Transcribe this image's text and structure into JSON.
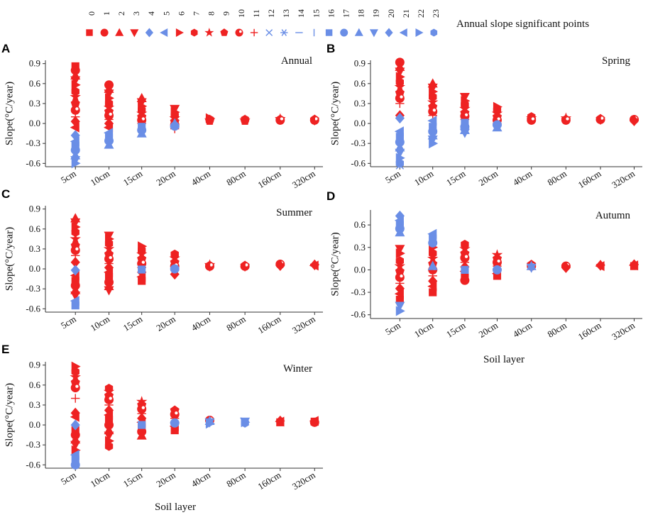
{
  "colors": {
    "red": "#ee2222",
    "blue": "#6a8ee6",
    "axis": "#333333"
  },
  "legend": {
    "title": "Annual slope significant points",
    "numbers": [
      "0",
      "1",
      "2",
      "3",
      "4",
      "5",
      "6",
      "7",
      "8",
      "9",
      "10",
      "11",
      "12",
      "13",
      "14",
      "15",
      "16",
      "17",
      "18",
      "19",
      "20",
      "21",
      "22",
      "23"
    ],
    "symbols": [
      {
        "shape": "square",
        "color": "red"
      },
      {
        "shape": "circle",
        "color": "red"
      },
      {
        "shape": "triangle-up",
        "color": "red"
      },
      {
        "shape": "triangle-down",
        "color": "red"
      },
      {
        "shape": "diamond",
        "color": "blue"
      },
      {
        "shape": "triangle-left",
        "color": "blue"
      },
      {
        "shape": "triangle-right",
        "color": "red"
      },
      {
        "shape": "hexagon",
        "color": "red"
      },
      {
        "shape": "star",
        "color": "red"
      },
      {
        "shape": "pentagon",
        "color": "red"
      },
      {
        "shape": "dotted-circle",
        "color": "red"
      },
      {
        "shape": "plus",
        "color": "red"
      },
      {
        "shape": "cross",
        "color": "blue"
      },
      {
        "shape": "asterisk",
        "color": "blue"
      },
      {
        "shape": "hline",
        "color": "blue"
      },
      {
        "shape": "vline",
        "color": "blue"
      },
      {
        "shape": "square",
        "color": "blue"
      },
      {
        "shape": "circle",
        "color": "blue"
      },
      {
        "shape": "triangle-up",
        "color": "blue"
      },
      {
        "shape": "triangle-down",
        "color": "blue"
      },
      {
        "shape": "diamond",
        "color": "blue"
      },
      {
        "shape": "triangle-left",
        "color": "blue"
      },
      {
        "shape": "triangle-right",
        "color": "blue"
      },
      {
        "shape": "hexagon",
        "color": "blue"
      }
    ]
  },
  "chart_data": [
    {
      "panel": "A",
      "type": "scatter",
      "title": "Annual",
      "ylabel": "Slope(°C/year)",
      "xlabel": "",
      "categories": [
        "5cm",
        "10cm",
        "15cm",
        "20cm",
        "40cm",
        "80cm",
        "160cm",
        "320cm"
      ],
      "ylim": [
        -0.65,
        0.95
      ],
      "yticks": [
        "0.9",
        "0.6",
        "0.3",
        "0.0",
        "-0.3",
        "-0.6"
      ],
      "groups": [
        {
          "category": "5cm",
          "red": [
            0.86,
            0.8,
            0.72,
            0.65,
            0.58,
            0.48,
            0.4,
            0.3,
            0.2,
            0.1,
            0.03,
            -0.06
          ],
          "blue": [
            -0.18,
            -0.27,
            -0.33,
            -0.4,
            -0.48,
            -0.55,
            -0.6
          ]
        },
        {
          "category": "10cm",
          "red": [
            0.58,
            0.52,
            0.45,
            0.38,
            0.3,
            0.24,
            0.18,
            0.12,
            0.06,
            0.0,
            -0.06
          ],
          "blue": [
            -0.14,
            -0.21,
            -0.26,
            -0.32
          ]
        },
        {
          "category": "15cm",
          "red": [
            0.38,
            0.32,
            0.26,
            0.2,
            0.15,
            0.1,
            0.05,
            0.0
          ],
          "blue": [
            -0.05,
            -0.1,
            -0.15
          ]
        },
        {
          "category": "20cm",
          "red": [
            0.22,
            0.17,
            0.12,
            0.08,
            0.03,
            -0.02,
            -0.08
          ],
          "blue": [
            -0.04,
            0.0
          ]
        },
        {
          "category": "40cm",
          "red": [
            0.08,
            0.06,
            0.05,
            0.04
          ],
          "blue": []
        },
        {
          "category": "80cm",
          "red": [
            0.06,
            0.05,
            0.04
          ],
          "blue": []
        },
        {
          "category": "160cm",
          "red": [
            0.07,
            0.06,
            0.05
          ],
          "blue": []
        },
        {
          "category": "320cm",
          "red": [
            0.06,
            0.05,
            0.04
          ],
          "blue": []
        }
      ]
    },
    {
      "panel": "B",
      "type": "scatter",
      "title": "Spring",
      "ylabel": "Slope(°C/year)",
      "xlabel": "",
      "categories": [
        "5cm",
        "10cm",
        "15cm",
        "20cm",
        "40cm",
        "80cm",
        "160cm",
        "320cm"
      ],
      "ylim": [
        -0.65,
        0.95
      ],
      "yticks": [
        "0.9",
        "0.6",
        "0.3",
        "0.0",
        "-0.3",
        "-0.6"
      ],
      "groups": [
        {
          "category": "5cm",
          "red": [
            0.92,
            0.85,
            0.78,
            0.7,
            0.62,
            0.55,
            0.46,
            0.38,
            0.3,
            0.12
          ],
          "blue": [
            0.08,
            -0.12,
            -0.2,
            -0.28,
            -0.36,
            -0.44,
            -0.52,
            -0.6,
            -0.63
          ]
        },
        {
          "category": "10cm",
          "red": [
            0.6,
            0.54,
            0.48,
            0.4,
            0.32,
            0.25,
            0.18,
            0.12
          ],
          "blue": [
            0.04,
            -0.05,
            -0.12,
            -0.18,
            -0.24,
            -0.3
          ]
        },
        {
          "category": "15cm",
          "red": [
            0.4,
            0.34,
            0.28,
            0.22,
            0.16,
            0.11,
            0.06
          ],
          "blue": [
            0.01,
            -0.05,
            -0.1,
            -0.14
          ]
        },
        {
          "category": "20cm",
          "red": [
            0.25,
            0.2,
            0.15,
            0.1,
            0.05,
            0.0
          ],
          "blue": [
            -0.02,
            -0.06
          ]
        },
        {
          "category": "40cm",
          "red": [
            0.1,
            0.08,
            0.06,
            0.05
          ],
          "blue": []
        },
        {
          "category": "80cm",
          "red": [
            0.08,
            0.06,
            0.05
          ],
          "blue": []
        },
        {
          "category": "160cm",
          "red": [
            0.07,
            0.06,
            0.05
          ],
          "blue": []
        },
        {
          "category": "320cm",
          "red": [
            0.06,
            0.05,
            0.04
          ],
          "blue": []
        }
      ]
    },
    {
      "panel": "C",
      "type": "scatter",
      "title": "Summer",
      "ylabel": "Slope(°C/year)",
      "xlabel": "",
      "categories": [
        "5cm",
        "10cm",
        "15cm",
        "20cm",
        "40cm",
        "80cm",
        "160cm",
        "320cm"
      ],
      "ylim": [
        -0.65,
        0.95
      ],
      "yticks": [
        "0.9",
        "0.6",
        "0.3",
        "0.0",
        "-0.3",
        "-0.6"
      ],
      "groups": [
        {
          "category": "5cm",
          "red": [
            0.76,
            0.7,
            0.63,
            0.55,
            0.45,
            0.35,
            0.28,
            0.2,
            0.1,
            -0.1,
            -0.18,
            -0.25,
            -0.32,
            -0.4
          ],
          "blue": [
            -0.02,
            -0.48,
            -0.55
          ]
        },
        {
          "category": "10cm",
          "red": [
            0.5,
            0.45,
            0.38,
            0.3,
            0.22,
            0.15,
            0.08,
            0.02,
            -0.05,
            -0.12,
            -0.2,
            -0.26,
            -0.32
          ],
          "blue": []
        },
        {
          "category": "15cm",
          "red": [
            0.34,
            0.28,
            0.22,
            0.15,
            0.08,
            0.02,
            -0.05,
            -0.12,
            -0.18
          ],
          "blue": [
            -0.01
          ]
        },
        {
          "category": "20cm",
          "red": [
            0.22,
            0.16,
            0.1,
            0.04,
            -0.02,
            -0.08
          ],
          "blue": [
            0.0
          ]
        },
        {
          "category": "40cm",
          "red": [
            0.06,
            0.05,
            0.04,
            0.03
          ],
          "blue": []
        },
        {
          "category": "80cm",
          "red": [
            0.05,
            0.04,
            0.03
          ],
          "blue": []
        },
        {
          "category": "160cm",
          "red": [
            0.07,
            0.06,
            0.05
          ],
          "blue": []
        },
        {
          "category": "320cm",
          "red": [
            0.07,
            0.06,
            0.05
          ],
          "blue": []
        }
      ]
    },
    {
      "panel": "D",
      "type": "scatter",
      "title": "Autumn",
      "ylabel": "Slope(°C/year)",
      "xlabel": "Soil layer",
      "categories": [
        "5cm",
        "10cm",
        "15cm",
        "20cm",
        "40cm",
        "80cm",
        "160cm",
        "320cm"
      ],
      "ylim": [
        -0.65,
        0.8
      ],
      "yticks": [
        "0.6",
        "0.3",
        "0.0",
        "-0.3",
        "-0.6"
      ],
      "groups": [
        {
          "category": "5cm",
          "red": [
            0.28,
            0.22,
            0.12,
            0.05,
            -0.02,
            -0.1,
            -0.18,
            -0.25,
            -0.32,
            -0.4
          ],
          "blue": [
            0.72,
            0.66,
            0.6,
            0.55,
            0.5,
            -0.48,
            -0.55
          ]
        },
        {
          "category": "10cm",
          "red": [
            0.3,
            0.22,
            0.15,
            0.08,
            0.0,
            -0.08,
            -0.15,
            -0.22,
            -0.3
          ],
          "blue": [
            0.48,
            0.42,
            0.36,
            0.05
          ]
        },
        {
          "category": "15cm",
          "red": [
            0.34,
            0.28,
            0.22,
            0.16,
            0.1,
            0.04,
            -0.02,
            -0.08,
            -0.14
          ],
          "blue": [
            0.0
          ]
        },
        {
          "category": "20cm",
          "red": [
            0.2,
            0.15,
            0.1,
            0.05,
            0.0,
            -0.05,
            -0.08
          ],
          "blue": [
            0.0
          ]
        },
        {
          "category": "40cm",
          "red": [
            0.07,
            0.05
          ],
          "blue": [
            0.05,
            0.03
          ]
        },
        {
          "category": "80cm",
          "red": [
            0.05,
            0.04,
            0.03
          ],
          "blue": []
        },
        {
          "category": "160cm",
          "red": [
            0.07,
            0.06,
            0.05
          ],
          "blue": []
        },
        {
          "category": "320cm",
          "red": [
            0.07,
            0.06,
            0.05
          ],
          "blue": []
        }
      ]
    },
    {
      "panel": "E",
      "type": "scatter",
      "title": "Winter",
      "ylabel": "Slope(°C/year)",
      "xlabel": "Soil layer",
      "categories": [
        "5cm",
        "10cm",
        "15cm",
        "20cm",
        "40cm",
        "80cm",
        "160cm",
        "320cm"
      ],
      "ylim": [
        -0.65,
        0.95
      ],
      "yticks": [
        "0.9",
        "0.6",
        "0.3",
        "0.0",
        "-0.3",
        "-0.6"
      ],
      "groups": [
        {
          "category": "5cm",
          "red": [
            0.88,
            0.8,
            0.72,
            0.64,
            0.56,
            0.4,
            0.18,
            0.12,
            -0.08,
            -0.15,
            -0.22,
            -0.3,
            -0.38
          ],
          "blue": [
            0.0,
            -0.45,
            -0.52,
            -0.6
          ]
        },
        {
          "category": "10cm",
          "red": [
            0.55,
            0.5,
            0.44,
            0.38,
            0.3,
            0.22,
            0.15,
            0.08,
            0.0,
            -0.08,
            -0.16,
            -0.24,
            -0.32
          ],
          "blue": []
        },
        {
          "category": "15cm",
          "red": [
            0.35,
            0.3,
            0.24,
            0.17,
            0.1,
            0.04,
            -0.04,
            -0.1,
            -0.16
          ],
          "blue": [
            0.0
          ]
        },
        {
          "category": "20cm",
          "red": [
            0.22,
            0.16,
            0.1,
            0.04,
            -0.02,
            -0.08
          ],
          "blue": [
            0.03
          ]
        },
        {
          "category": "40cm",
          "red": [
            0.07
          ],
          "blue": [
            0.06,
            0.04,
            0.02
          ]
        },
        {
          "category": "80cm",
          "red": [],
          "blue": [
            0.05,
            0.04,
            0.03
          ]
        },
        {
          "category": "160cm",
          "red": [
            0.06,
            0.05,
            0.04
          ],
          "blue": []
        },
        {
          "category": "320cm",
          "red": [
            0.06,
            0.05,
            0.04
          ],
          "blue": []
        }
      ]
    }
  ]
}
